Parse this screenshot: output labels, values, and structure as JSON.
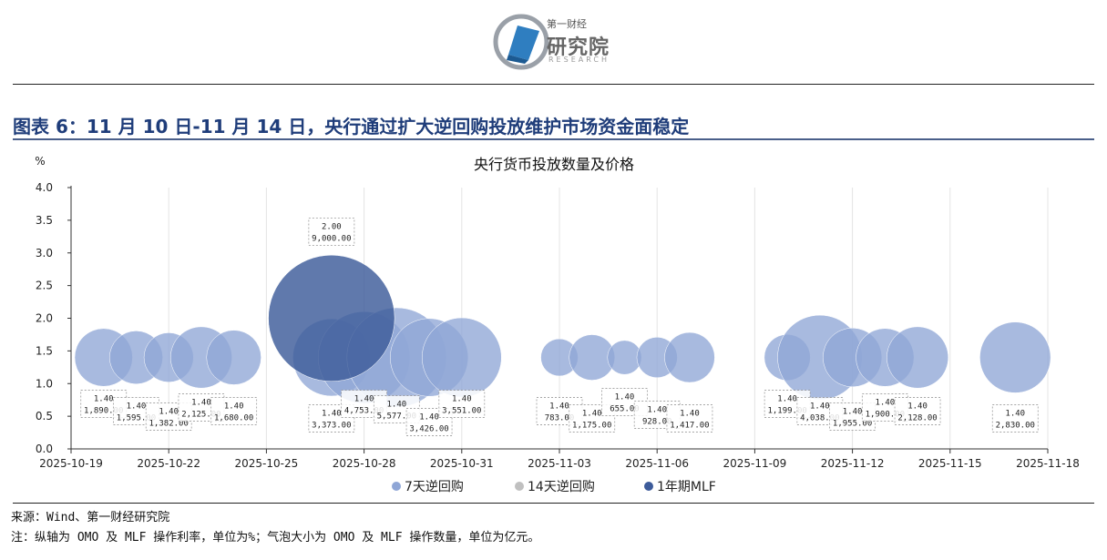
{
  "header": {
    "logo_cn_small": "第一财经",
    "logo_cn_big": "研究院",
    "logo_en": "RESEARCH",
    "figure_title": "图表 6：11 月 10 日-11 月 14 日，央行通过扩大逆回购投放维护市场资金面稳定"
  },
  "colors": {
    "series_7d": "#8fa6d6",
    "series_14d": "#c0c0c0",
    "series_mlf": "#3d5b9a",
    "title": "#1f3d7a"
  },
  "chart_data": {
    "type": "bubble",
    "title": "央行货币投放数量及价格",
    "ylabel": "%",
    "ylim": [
      0,
      4
    ],
    "yticks": [
      "0.0",
      "0.5",
      "1.0",
      "1.5",
      "2.0",
      "2.5",
      "3.0",
      "3.5",
      "4.0"
    ],
    "xlim_day": [
      0,
      30
    ],
    "xticks": [
      {
        "day": 0,
        "label": "2025-10-19"
      },
      {
        "day": 3,
        "label": "2025-10-22"
      },
      {
        "day": 6,
        "label": "2025-10-25"
      },
      {
        "day": 9,
        "label": "2025-10-28"
      },
      {
        "day": 12,
        "label": "2025-10-31"
      },
      {
        "day": 15,
        "label": "2025-11-03"
      },
      {
        "day": 18,
        "label": "2025-11-06"
      },
      {
        "day": 21,
        "label": "2025-11-09"
      },
      {
        "day": 24,
        "label": "2025-11-12"
      },
      {
        "day": 27,
        "label": "2025-11-15"
      },
      {
        "day": 30,
        "label": "2025-11-18"
      }
    ],
    "legend": [
      "7天逆回购",
      "14天逆回购",
      "1年期MLF"
    ],
    "series": [
      {
        "name": "7天逆回购",
        "points": [
          {
            "date": "2025-10-20",
            "day": 1,
            "rate": 1.4,
            "rate_label": "1.40",
            "amount": 1890,
            "amount_label": "1,890.00"
          },
          {
            "date": "2025-10-21",
            "day": 2,
            "rate": 1.4,
            "rate_label": "1.40",
            "amount": 1595,
            "amount_label": "1,595.00"
          },
          {
            "date": "2025-10-22",
            "day": 3,
            "rate": 1.4,
            "rate_label": "1.40",
            "amount": 1382,
            "amount_label": "1,382.00"
          },
          {
            "date": "2025-10-23",
            "day": 4,
            "rate": 1.4,
            "rate_label": "1.40",
            "amount": 2125,
            "amount_label": "2,125.00"
          },
          {
            "date": "2025-10-24",
            "day": 5,
            "rate": 1.4,
            "rate_label": "1.40",
            "amount": 1680,
            "amount_label": "1,680.00"
          },
          {
            "date": "2025-10-27",
            "day": 8,
            "rate": 1.4,
            "rate_label": "1.40",
            "amount": 3373,
            "amount_label": "3,373.00"
          },
          {
            "date": "2025-10-28",
            "day": 9,
            "rate": 1.4,
            "rate_label": "1.40",
            "amount": 4753,
            "amount_label": "4,753.00"
          },
          {
            "date": "2025-10-29",
            "day": 10,
            "rate": 1.4,
            "rate_label": "1.40",
            "amount": 5577,
            "amount_label": "5,577.00"
          },
          {
            "date": "2025-10-30",
            "day": 11,
            "rate": 1.4,
            "rate_label": "1.40",
            "amount": 3426,
            "amount_label": "3,426.00"
          },
          {
            "date": "2025-10-31",
            "day": 12,
            "rate": 1.4,
            "rate_label": "1.40",
            "amount": 3551,
            "amount_label": "3,551.00"
          },
          {
            "date": "2025-11-03",
            "day": 15,
            "rate": 1.4,
            "rate_label": "1.40",
            "amount": 783,
            "amount_label": "783.00"
          },
          {
            "date": "2025-11-04",
            "day": 16,
            "rate": 1.4,
            "rate_label": "1.40",
            "amount": 1175,
            "amount_label": "1,175.00"
          },
          {
            "date": "2025-11-05",
            "day": 17,
            "rate": 1.4,
            "rate_label": "1.40",
            "amount": 655,
            "amount_label": "655.00"
          },
          {
            "date": "2025-11-06",
            "day": 18,
            "rate": 1.4,
            "rate_label": "1.40",
            "amount": 928,
            "amount_label": "928.00"
          },
          {
            "date": "2025-11-07",
            "day": 19,
            "rate": 1.4,
            "rate_label": "1.40",
            "amount": 1417,
            "amount_label": "1,417.00"
          },
          {
            "date": "2025-11-10",
            "day": 22,
            "rate": 1.4,
            "rate_label": "1.40",
            "amount": 1199,
            "amount_label": "1,199.00"
          },
          {
            "date": "2025-11-11",
            "day": 23,
            "rate": 1.4,
            "rate_label": "1.40",
            "amount": 4038,
            "amount_label": "4,038.00"
          },
          {
            "date": "2025-11-12",
            "day": 24,
            "rate": 1.4,
            "rate_label": "1.40",
            "amount": 1955,
            "amount_label": "1,955.00"
          },
          {
            "date": "2025-11-13",
            "day": 25,
            "rate": 1.4,
            "rate_label": "1.40",
            "amount": 1900,
            "amount_label": "1,900.00"
          },
          {
            "date": "2025-11-14",
            "day": 26,
            "rate": 1.4,
            "rate_label": "1.40",
            "amount": 2128,
            "amount_label": "2,128.00"
          },
          {
            "date": "2025-11-17",
            "day": 29,
            "rate": 1.4,
            "rate_label": "1.40",
            "amount": 2830,
            "amount_label": "2,830.00"
          }
        ]
      },
      {
        "name": "14天逆回购",
        "points": []
      },
      {
        "name": "1年期MLF",
        "points": [
          {
            "date": "2025-10-27",
            "day": 8,
            "rate": 2.0,
            "rate_label": "2.00",
            "amount": 9000,
            "amount_label": "9,000.00"
          }
        ]
      }
    ]
  },
  "notes": {
    "source": "来源：Wind、第一财经研究院",
    "note": "注：纵轴为 OMO 及 MLF 操作利率，单位为%；气泡大小为 OMO 及 MLF 操作数量，单位为亿元。"
  }
}
